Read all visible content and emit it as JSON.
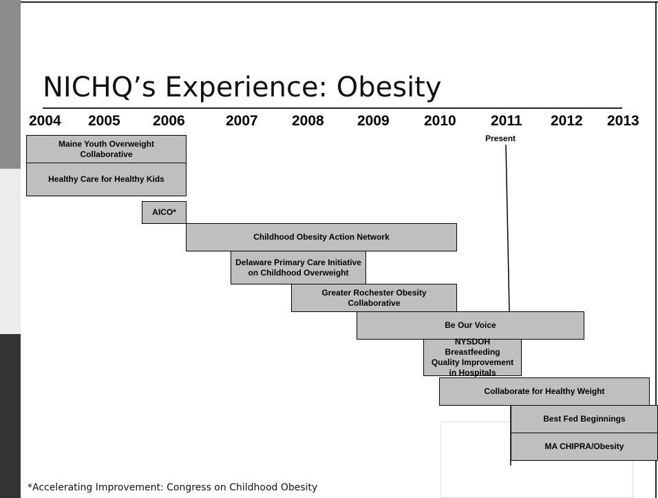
{
  "title": "NICHQ’s Experience: Obesity",
  "years": [
    "2004",
    "2005",
    "2006",
    "2007",
    "2008",
    "2009",
    "2010",
    "2011",
    "2012",
    "2013"
  ],
  "present": "Present",
  "bars": [
    {
      "label": "Maine Youth Overweight Collaborative"
    },
    {
      "label": "Healthy Care for Healthy Kids"
    },
    {
      "label": "AICO*"
    },
    {
      "label": "Childhood Obesity Action Network"
    },
    {
      "label": "Delaware Primary Care Initiative on Childhood Overweight"
    },
    {
      "label": "Greater Rochester Obesity Collaborative"
    },
    {
      "label": "Be Our Voice"
    },
    {
      "label": "NYSDOH Breastfeeding Quality Improvement in Hospitals"
    },
    {
      "label": "Collaborate for Healthy Weight"
    },
    {
      "label": "Best Fed Beginnings"
    },
    {
      "label": "MA CHIPRA/Obesity"
    }
  ],
  "footnote": "*Accelerating Improvement: Congress on Childhood Obesity"
}
